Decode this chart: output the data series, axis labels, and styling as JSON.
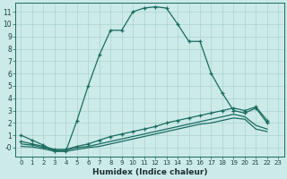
{
  "xlabel": "Humidex (Indice chaleur)",
  "xlim": [
    -0.5,
    23.5
  ],
  "ylim": [
    -0.7,
    11.7
  ],
  "xticks": [
    0,
    1,
    2,
    3,
    4,
    5,
    6,
    7,
    8,
    9,
    10,
    11,
    12,
    13,
    14,
    15,
    16,
    17,
    18,
    19,
    20,
    21,
    22,
    23
  ],
  "yticks": [
    0,
    1,
    2,
    3,
    4,
    5,
    6,
    7,
    8,
    9,
    10,
    11
  ],
  "ytick_labels": [
    "-0",
    "1",
    "2",
    "3",
    "4",
    "5",
    "6",
    "7",
    "8",
    "9",
    "10",
    "11"
  ],
  "bg_color": "#cceae8",
  "grid_color": "#aad4d0",
  "line_color": "#1a6b60",
  "line1_x": [
    0,
    1,
    2,
    3,
    4,
    5,
    6,
    7,
    8,
    9,
    10,
    11,
    12,
    13,
    14,
    15,
    16,
    17,
    18,
    19,
    20,
    21,
    22
  ],
  "line1_y": [
    1.0,
    0.6,
    0.2,
    -0.3,
    -0.3,
    2.2,
    5.0,
    7.5,
    9.5,
    9.5,
    11.0,
    11.3,
    11.4,
    11.3,
    10.0,
    8.6,
    8.6,
    6.0,
    4.4,
    3.0,
    2.8,
    3.2,
    2.0
  ],
  "line2_x": [
    0,
    1,
    2,
    3,
    4,
    5,
    6,
    7,
    8,
    9,
    10,
    11,
    12,
    13,
    14,
    15,
    16,
    17,
    18,
    19,
    20,
    21,
    22
  ],
  "line2_y": [
    0.5,
    0.3,
    0.1,
    -0.15,
    -0.15,
    0.1,
    0.3,
    0.6,
    0.9,
    1.1,
    1.3,
    1.5,
    1.7,
    2.0,
    2.2,
    2.4,
    2.6,
    2.8,
    3.0,
    3.2,
    3.0,
    3.3,
    2.2
  ],
  "line3_x": [
    0,
    1,
    2,
    3,
    4,
    5,
    6,
    7,
    8,
    9,
    10,
    11,
    12,
    13,
    14,
    15,
    16,
    17,
    18,
    19,
    20,
    21,
    22
  ],
  "line3_y": [
    0.3,
    0.2,
    0.0,
    -0.2,
    -0.2,
    0.0,
    0.1,
    0.3,
    0.5,
    0.7,
    0.9,
    1.1,
    1.3,
    1.5,
    1.7,
    1.9,
    2.1,
    2.3,
    2.5,
    2.7,
    2.5,
    1.8,
    1.5
  ],
  "line4_x": [
    0,
    1,
    2,
    3,
    4,
    5,
    6,
    7,
    8,
    9,
    10,
    11,
    12,
    13,
    14,
    15,
    16,
    17,
    18,
    19,
    20,
    21,
    22
  ],
  "line4_y": [
    0.1,
    0.05,
    -0.1,
    -0.3,
    -0.3,
    -0.15,
    0.0,
    0.1,
    0.3,
    0.5,
    0.7,
    0.9,
    1.1,
    1.3,
    1.5,
    1.7,
    1.9,
    2.0,
    2.2,
    2.4,
    2.3,
    1.5,
    1.3
  ]
}
